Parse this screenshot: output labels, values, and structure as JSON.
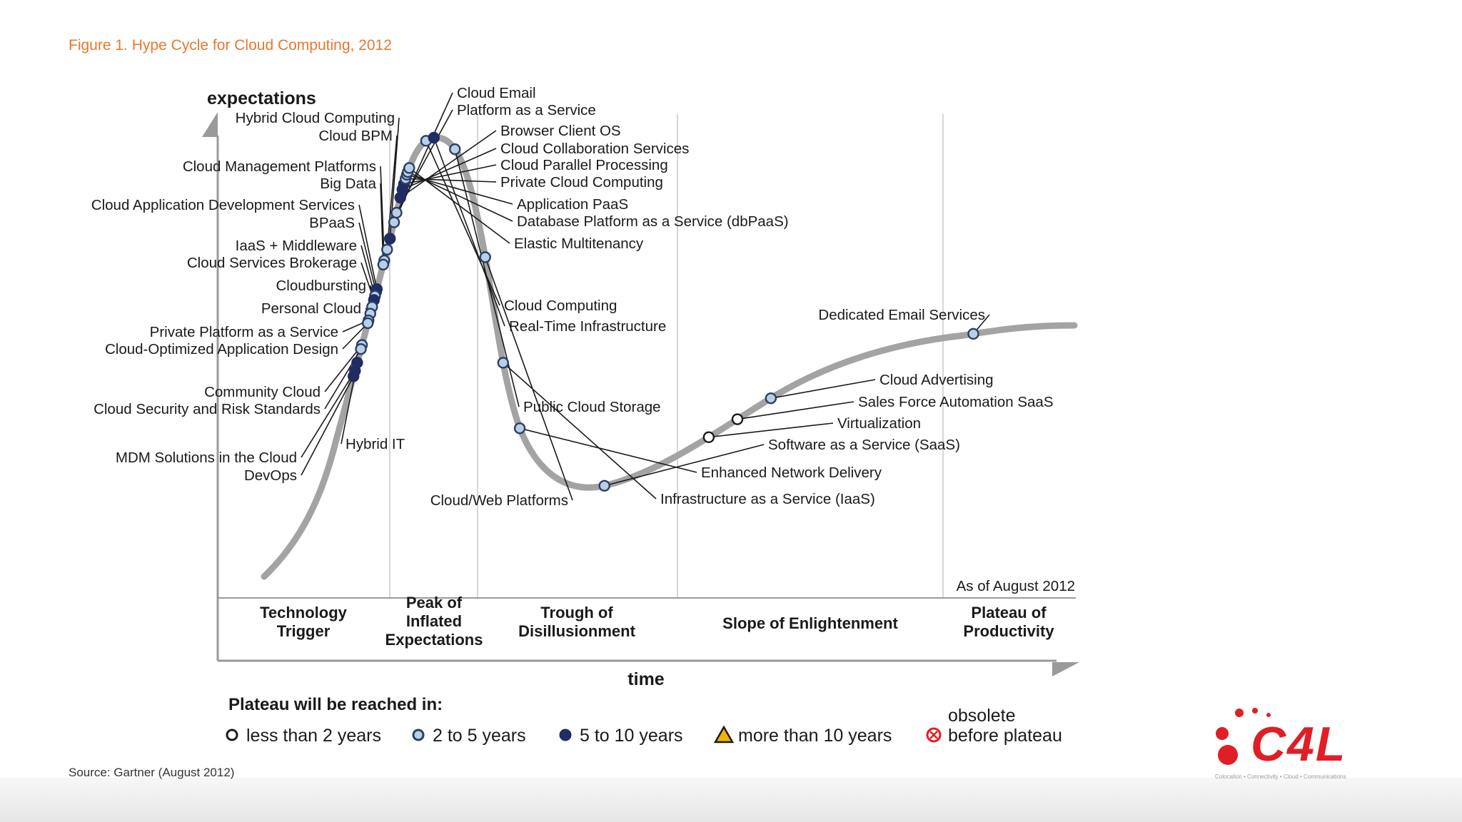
{
  "figure_title": "Figure 1. Hype Cycle for Cloud Computing, 2012",
  "source": "Source: Gartner (August 2012)",
  "as_of": "As of August 2012",
  "logo": {
    "text": "C4L",
    "tagline": "Colocation • Connectivity • Cloud • Communications",
    "color": "#e01e26"
  },
  "chart_data": {
    "type": "scatter",
    "title": "Hype Cycle for Cloud Computing, 2012",
    "xlabel": "time",
    "ylabel": "expectations",
    "phases": [
      "Technology\nTrigger",
      "Peak of\nInflated\nExpectations",
      "Trough of\nDisillusionment",
      "Slope of Enlightenment",
      "Plateau of\nProductivity"
    ],
    "legend_title": "Plateau will be reached in:",
    "legend": [
      {
        "key": "lt2",
        "label": "less than 2 years",
        "shape": "circle",
        "fill": "#ffffff",
        "stroke": "#1a1a1a"
      },
      {
        "key": "2to5",
        "label": "2 to 5 years",
        "shape": "circle",
        "fill": "#b9cfe6",
        "stroke": "#2a3f66"
      },
      {
        "key": "5to10",
        "label": "5 to 10 years",
        "shape": "circle",
        "fill": "#1f2d63",
        "stroke": "#1f2d63"
      },
      {
        "key": "gt10",
        "label": "more than 10 years",
        "shape": "triangle",
        "fill": "#f5b300",
        "stroke": "#1a1a1a"
      },
      {
        "key": "obs",
        "label": "obsolete\nbefore plateau",
        "shape": "x-circle",
        "fill": "#ffffff",
        "stroke": "#e01e26"
      }
    ],
    "points": [
      {
        "name": "Cloud Email",
        "t": 0.271,
        "cat": "2to5"
      },
      {
        "name": "Platform as a Service",
        "t": 0.278,
        "cat": "2to5"
      },
      {
        "name": "Hybrid Cloud Computing",
        "t": 0.259,
        "cat": "5to10"
      },
      {
        "name": "Cloud BPM",
        "t": 0.251,
        "cat": "2to5"
      },
      {
        "name": "Cloud Management Platforms",
        "t": 0.243,
        "cat": "2to5"
      },
      {
        "name": "Big Data",
        "t": 0.24,
        "cat": "2to5"
      },
      {
        "name": "Browser Client OS",
        "t": 0.289,
        "cat": "5to10"
      },
      {
        "name": "Cloud Collaboration Services",
        "t": 0.295,
        "cat": "5to10"
      },
      {
        "name": "Cloud Parallel Processing",
        "t": 0.299,
        "cat": "5to10"
      },
      {
        "name": "Private Cloud Computing",
        "t": 0.303,
        "cat": "2to5"
      },
      {
        "name": "Application PaaS",
        "t": 0.306,
        "cat": "2to5"
      },
      {
        "name": "Database Platform as a Service (dbPaaS)",
        "t": 0.308,
        "cat": "2to5"
      },
      {
        "name": "Elastic Multitenancy",
        "t": 0.311,
        "cat": "2to5"
      },
      {
        "name": "Cloud Application Development Services",
        "t": 0.222,
        "cat": "5to10"
      },
      {
        "name": "BPaaS",
        "t": 0.22,
        "cat": "5to10"
      },
      {
        "name": "IaaS + Middleware",
        "t": 0.217,
        "cat": "2to5"
      },
      {
        "name": "Cloud Services Brokerage",
        "t": 0.214,
        "cat": "5to10"
      },
      {
        "name": "Cloudbursting",
        "t": 0.209,
        "cat": "2to5"
      },
      {
        "name": "Personal Cloud",
        "t": 0.204,
        "cat": "2to5"
      },
      {
        "name": "Private Platform as a Service",
        "t": 0.199,
        "cat": "2to5"
      },
      {
        "name": "Cloud-Optimized Application Design",
        "t": 0.197,
        "cat": "2to5"
      },
      {
        "name": "Community Cloud",
        "t": 0.181,
        "cat": "2to5"
      },
      {
        "name": "Cloud Security and Risk Standards",
        "t": 0.178,
        "cat": "2to5"
      },
      {
        "name": "Hybrid IT",
        "t": 0.168,
        "cat": "5to10"
      },
      {
        "name": "MDM Solutions in the Cloud",
        "t": 0.162,
        "cat": "5to10"
      },
      {
        "name": "DevOps",
        "t": 0.158,
        "cat": "5to10"
      },
      {
        "name": "Cloud Computing",
        "t": 0.334,
        "cat": "2to5"
      },
      {
        "name": "Real-Time Infrastructure",
        "t": 0.34,
        "cat": "5to10"
      },
      {
        "name": "Public Cloud Storage",
        "t": 0.358,
        "cat": "2to5"
      },
      {
        "name": "Cloud/Web Platforms",
        "t": 0.438,
        "cat": "2to5"
      },
      {
        "name": "Infrastructure as a Service (IaaS)",
        "t": 0.514,
        "cat": "2to5"
      },
      {
        "name": "Enhanced Network Delivery",
        "t": 0.562,
        "cat": "2to5"
      },
      {
        "name": "Software as a Service (SaaS)",
        "t": 0.642,
        "cat": "2to5"
      },
      {
        "name": "Virtualization",
        "t": 0.724,
        "cat": "lt2"
      },
      {
        "name": "Sales Force Automation SaaS",
        "t": 0.748,
        "cat": "lt2"
      },
      {
        "name": "Cloud Advertising",
        "t": 0.776,
        "cat": "2to5"
      },
      {
        "name": "Dedicated Email Services",
        "t": 0.928,
        "cat": "2to5"
      }
    ]
  }
}
